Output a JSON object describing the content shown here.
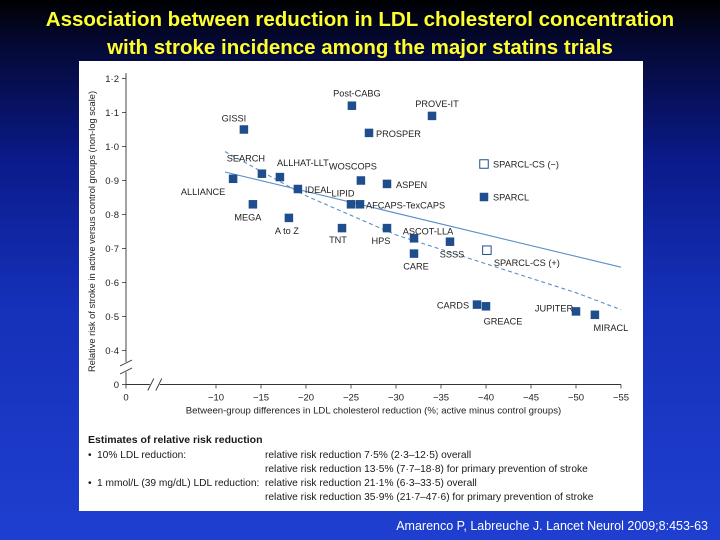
{
  "slide": {
    "title_line1": "Association between reduction in LDL cholesterol concentration",
    "title_line2": "with stroke incidence among the major statins trials",
    "citation": "Amarenco P, Labreuche J. Lancet Neurol 2009;8:453-63"
  },
  "colors": {
    "title": "#ffff2e",
    "marker": "#1f4e8c",
    "line": "#5a8fc8",
    "axis": "#333333"
  },
  "chart_data": {
    "type": "scatter",
    "xlabel": "Between-group differences in LDL cholesterol reduction (%; active minus control groups)",
    "ylabel": "Relative risk of stroke in active versus control groups (non-log scale)",
    "xlim": [
      0,
      -55
    ],
    "ylim": [
      0,
      1.2
    ],
    "y_axis_break": true,
    "x_axis_break": true,
    "x_ticks": [
      {
        "v": 0,
        "label": "0"
      },
      {
        "v": -10,
        "label": "−10"
      },
      {
        "v": -15,
        "label": "−15"
      },
      {
        "v": -20,
        "label": "−20"
      },
      {
        "v": -25,
        "label": "−25"
      },
      {
        "v": -30,
        "label": "−30"
      },
      {
        "v": -35,
        "label": "−35"
      },
      {
        "v": -40,
        "label": "−40"
      },
      {
        "v": -45,
        "label": "−45"
      },
      {
        "v": -50,
        "label": "−50"
      },
      {
        "v": -55,
        "label": "−55"
      }
    ],
    "y_ticks": [
      {
        "v": 0,
        "label": "0"
      },
      {
        "v": 0.4,
        "label": "0·4"
      },
      {
        "v": 0.5,
        "label": "0·5"
      },
      {
        "v": 0.6,
        "label": "0·6"
      },
      {
        "v": 0.7,
        "label": "0·7"
      },
      {
        "v": 0.8,
        "label": "0·8"
      },
      {
        "v": 0.9,
        "label": "0·9"
      },
      {
        "v": 1.0,
        "label": "1·0"
      },
      {
        "v": 1.1,
        "label": "1·1"
      },
      {
        "v": 1.2,
        "label": "1·2"
      }
    ],
    "points": [
      {
        "name": "GISSI",
        "x": -13.1,
        "y": 1.05,
        "filled": true
      },
      {
        "name": "Post-CABG",
        "x": -25.1,
        "y": 1.12,
        "filled": true
      },
      {
        "name": "PROVE-IT",
        "x": -34.0,
        "y": 1.09,
        "filled": true
      },
      {
        "name": "PROSPER",
        "x": -27.0,
        "y": 1.04,
        "filled": true
      },
      {
        "name": "SEARCH",
        "x": -15.1,
        "y": 0.92,
        "filled": true
      },
      {
        "name": "ALLHAT-LLT",
        "x": -17.1,
        "y": 0.91,
        "filled": true
      },
      {
        "name": "ALLIANCE",
        "x": -11.9,
        "y": 0.905,
        "filled": true
      },
      {
        "name": "WOSCOPS",
        "x": -26.1,
        "y": 0.9,
        "filled": true
      },
      {
        "name": "ASPEN",
        "x": -29.0,
        "y": 0.89,
        "filled": true
      },
      {
        "name": "IDEAL",
        "x": -19.1,
        "y": 0.875,
        "filled": true
      },
      {
        "name": "LIPID",
        "x": -25.0,
        "y": 0.83,
        "filled": true
      },
      {
        "name": "AFCAPS-TexCAPS",
        "x": -26.0,
        "y": 0.83,
        "filled": true
      },
      {
        "name": "MEGA",
        "x": -14.1,
        "y": 0.83,
        "filled": true
      },
      {
        "name": "A to Z",
        "x": -18.1,
        "y": 0.79,
        "filled": true
      },
      {
        "name": "TNT",
        "x": -24.0,
        "y": 0.76,
        "filled": true
      },
      {
        "name": "HPS",
        "x": -29.0,
        "y": 0.76,
        "filled": true
      },
      {
        "name": "ASCOT-LLA",
        "x": -32.0,
        "y": 0.73,
        "filled": true
      },
      {
        "name": "SSSS",
        "x": -36.0,
        "y": 0.72,
        "filled": true
      },
      {
        "name": "CARE",
        "x": -32.0,
        "y": 0.685,
        "filled": true
      },
      {
        "name": "CARDS",
        "x": -39.0,
        "y": 0.535,
        "filled": true
      },
      {
        "name": "GREACE",
        "x": -40.0,
        "y": 0.53,
        "filled": true
      },
      {
        "name": "JUPITER",
        "x": -50.0,
        "y": 0.515,
        "filled": true
      },
      {
        "name": "MIRACL",
        "x": -52.1,
        "y": 0.505,
        "filled": true
      },
      {
        "name": "SPARCL-CS (+)",
        "x": -40.1,
        "y": 0.695,
        "filled": false
      }
    ],
    "legend": [
      {
        "label": "SPARCL-CS (−)",
        "filled": false
      },
      {
        "label": "SPARCL",
        "filled": true
      }
    ],
    "fits": [
      {
        "style": "solid",
        "points": [
          [
            -11,
            0.925
          ],
          [
            -55,
            0.645
          ]
        ]
      },
      {
        "style": "dashed",
        "points": [
          [
            -11,
            0.985
          ],
          [
            -20,
            0.855
          ],
          [
            -30,
            0.74
          ],
          [
            -40,
            0.655
          ],
          [
            -50,
            0.57
          ],
          [
            -55,
            0.52
          ]
        ]
      }
    ],
    "estimates": {
      "heading": "Estimates of relative risk reduction",
      "rows": [
        {
          "bullet": "•",
          "label": "10% LDL reduction:",
          "text": "relative risk reduction 7·5% (2·3–12·5) overall"
        },
        {
          "bullet": "",
          "label": "",
          "text": "relative risk reduction 13·5% (7·7–18·8) for primary prevention of stroke"
        },
        {
          "bullet": "•",
          "label": "1 mmol/L (39 mg/dL) LDL reduction:",
          "text": "relative risk reduction 21·1% (6·3–33·5) overall"
        },
        {
          "bullet": "",
          "label": "",
          "text": "relative risk reduction 35·9% (21·7–47·6) for primary prevention of stroke"
        }
      ]
    }
  }
}
